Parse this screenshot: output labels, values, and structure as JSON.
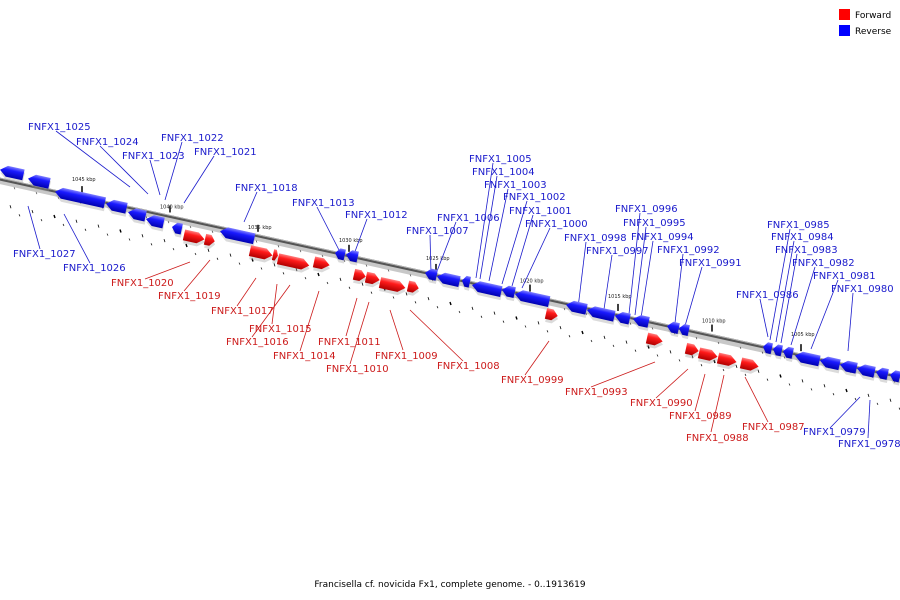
{
  "title": "Francisella cf. novicida Fx1, complete genome. - 0..1913619",
  "legend": {
    "forward_label": "Forward",
    "reverse_label": "Reverse",
    "forward_color": "#ff0000",
    "reverse_color": "#0000ff"
  },
  "ticks": [
    "1045 kbp",
    "1040 kbp",
    "1035 kbp",
    "1030 kbp",
    "1025 kbp",
    "1020 kbp",
    "1015 kbp",
    "1010 kbp",
    "1005 kbp"
  ],
  "reverse_genes": [
    "FNFX1_1025",
    "FNFX1_1024",
    "FNFX1_1023",
    "FNFX1_1022",
    "FNFX1_1021",
    "FNFX1_1018",
    "FNFX1_1013",
    "FNFX1_1012",
    "FNFX1_1005",
    "FNFX1_1004",
    "FNFX1_1003",
    "FNFX1_1002",
    "FNFX1_1001",
    "FNFX1_1006",
    "FNFX1_1000",
    "FNFX1_1007",
    "FNFX1_0996",
    "FNFX1_0995",
    "FNFX1_0998",
    "FNFX1_0994",
    "FNFX1_0997",
    "FNFX1_0992",
    "FNFX1_0991",
    "FNFX1_0985",
    "FNFX1_0984",
    "FNFX1_0983",
    "FNFX1_0982",
    "FNFX1_0981",
    "FNFX1_0980",
    "FNFX1_0986",
    "FNFX1_1027",
    "FNFX1_1026",
    "FNFX1_0979",
    "FNFX1_0978"
  ],
  "forward_genes": [
    "FNFX1_1020",
    "FNFX1_1019",
    "FNFX1_1017",
    "FNFX1_1015",
    "FNFX1_1016",
    "FNFX1_1014",
    "FNFX1_1011",
    "FNFX1_1010",
    "FNFX1_1009",
    "FNFX1_1008",
    "FNFX1_0999",
    "FNFX1_0993",
    "FNFX1_0990",
    "FNFX1_0989",
    "FNFX1_0988",
    "FNFX1_0987"
  ]
}
